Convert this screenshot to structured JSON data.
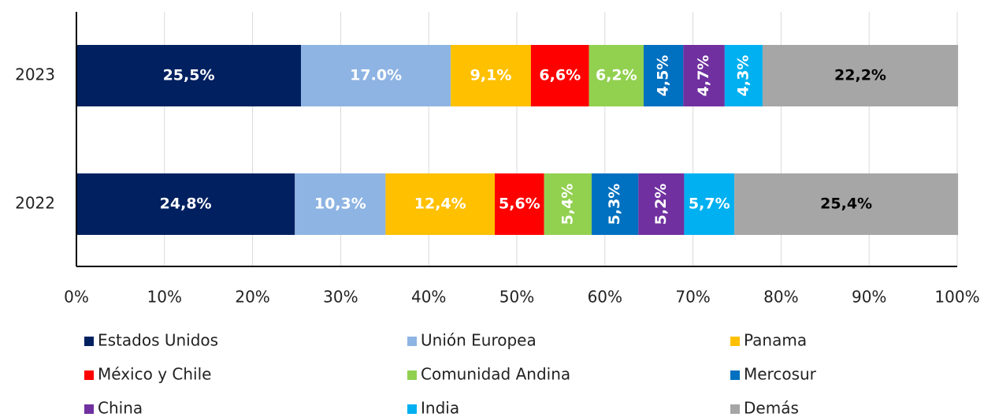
{
  "chart_data": {
    "type": "stacked_barh",
    "categories": [
      "2023",
      "2022"
    ],
    "series": [
      {
        "name": "Estados Unidos",
        "color": "#002060",
        "label_color": "#ffffff",
        "values": [
          25.5,
          24.8
        ],
        "value_labels": [
          "25,5%",
          "24,8%"
        ]
      },
      {
        "name": "Unión Europea",
        "color": "#8eb4e3",
        "label_color": "#ffffff",
        "values": [
          17.0,
          10.3
        ],
        "value_labels": [
          "17.0%",
          "10,3%"
        ]
      },
      {
        "name": "Panama",
        "color": "#ffc000",
        "label_color": "#ffffff",
        "values": [
          9.1,
          12.4
        ],
        "value_labels": [
          "9,1%",
          "12,4%"
        ]
      },
      {
        "name": "México y Chile",
        "color": "#ff0000",
        "label_color": "#ffffff",
        "values": [
          6.6,
          5.6
        ],
        "value_labels": [
          "6,6%",
          "5,6%"
        ]
      },
      {
        "name": "Comunidad Andina",
        "color": "#92d050",
        "label_color": "#ffffff",
        "values": [
          6.2,
          5.4
        ],
        "value_labels": [
          "6,2%",
          "5,4%"
        ]
      },
      {
        "name": "Mercosur",
        "color": "#0070c0",
        "label_color": "#ffffff",
        "values": [
          4.5,
          5.3
        ],
        "value_labels": [
          "4,5%",
          "5,3%"
        ]
      },
      {
        "name": "China",
        "color": "#7030a0",
        "label_color": "#ffffff",
        "values": [
          4.7,
          5.2
        ],
        "value_labels": [
          "4,7%",
          "5,2%"
        ]
      },
      {
        "name": "India",
        "color": "#00b0f0",
        "label_color": "#ffffff",
        "values": [
          4.3,
          5.7
        ],
        "value_labels": [
          "4,3%",
          "5,7%"
        ]
      },
      {
        "name": "Demás",
        "color": "#a6a6a6",
        "label_color": "#000000",
        "values": [
          22.2,
          25.4
        ],
        "value_labels": [
          "22,2%",
          "25,4%"
        ]
      }
    ],
    "xlim": [
      0,
      100
    ],
    "xticks": [
      {
        "value": 0,
        "label": "0%"
      },
      {
        "value": 10,
        "label": "10%"
      },
      {
        "value": 20,
        "label": "20%"
      },
      {
        "value": 30,
        "label": "30%"
      },
      {
        "value": 40,
        "label": "40%"
      },
      {
        "value": 50,
        "label": "50%"
      },
      {
        "value": 60,
        "label": "60%"
      },
      {
        "value": 70,
        "label": "70%"
      },
      {
        "value": 80,
        "label": "80%"
      },
      {
        "value": 90,
        "label": "90%"
      },
      {
        "value": 100,
        "label": "100%"
      }
    ],
    "grid": true,
    "legend": "bottom"
  }
}
